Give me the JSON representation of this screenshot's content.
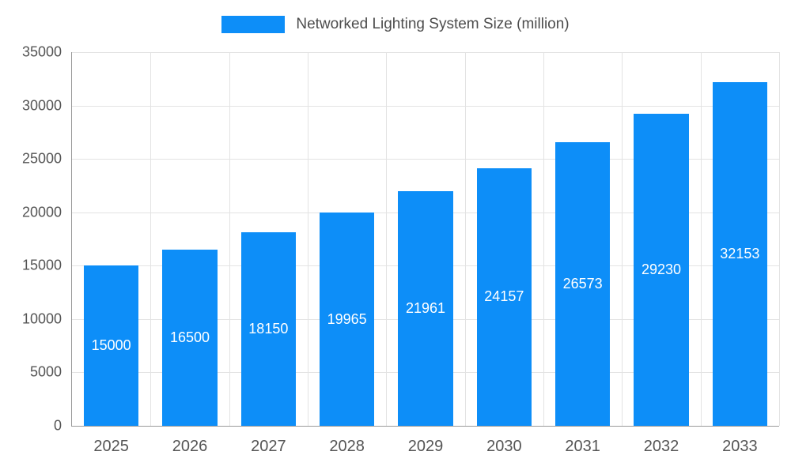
{
  "chart_data": {
    "type": "bar",
    "title": "",
    "legend": {
      "label": "Networked Lighting System Size (million)",
      "position": "top-center"
    },
    "categories": [
      "2025",
      "2026",
      "2027",
      "2028",
      "2029",
      "2030",
      "2031",
      "2032",
      "2033"
    ],
    "values": [
      15000,
      16500,
      18150,
      19965,
      21961,
      24157,
      26573,
      29230,
      32153
    ],
    "value_labels": [
      "15000",
      "16500",
      "18150",
      "19965",
      "21961",
      "24157",
      "26573",
      "29230",
      "32153"
    ],
    "xlabel": "",
    "ylabel": "",
    "ylim": [
      0,
      35000
    ],
    "yticks": [
      0,
      5000,
      10000,
      15000,
      20000,
      25000,
      30000,
      35000
    ],
    "grid": true,
    "bar_color": "#0D8EF8",
    "value_label_color": "#FFFFFF",
    "grid_color": "#E3E3E3",
    "axis_line_color": "#9A9A9A",
    "tick_text_color": "#555555",
    "legend_text_color": "#4D4D4D"
  }
}
